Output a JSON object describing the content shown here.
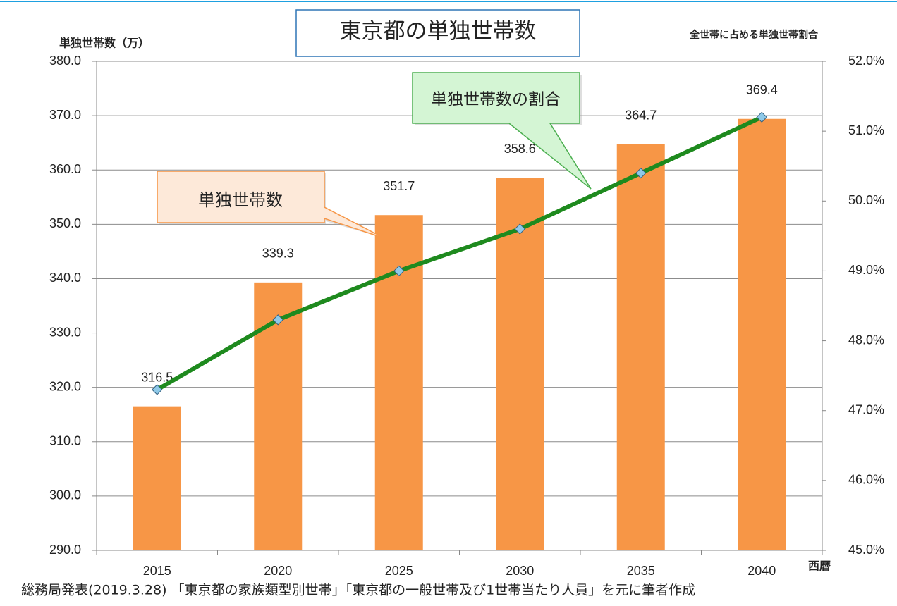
{
  "chart_data": {
    "type": "bar_line",
    "title": "東京都の単独世帯数",
    "y_label": "単独世帯数（万）",
    "y2_label": "全世帯に占める単独世帯割合",
    "x_label": "西暦",
    "source": "総務局発表(2019.3.28) 「東京都の家族類型別世帯」「東京都の一般世帯及び1世帯当たり人員」を元に筆者作成",
    "categories": [
      "2015",
      "2020",
      "2025",
      "2030",
      "2035",
      "2040"
    ],
    "series": [
      {
        "name": "単独世帯数",
        "type": "bar",
        "color": "#f79646",
        "values": [
          316.5,
          339.3,
          351.7,
          358.6,
          364.7,
          369.4
        ]
      },
      {
        "name": "単独世帯数の割合",
        "type": "line",
        "axis": "y2",
        "color": "#1e8a1e",
        "values": [
          47.3,
          48.3,
          49.0,
          49.6,
          50.4,
          51.2
        ]
      }
    ],
    "ylim": [
      290,
      380
    ],
    "yticks": [
      {
        "value": 290,
        "label": "290.0"
      },
      {
        "value": 300,
        "label": "300.0"
      },
      {
        "value": 310,
        "label": "310.0"
      },
      {
        "value": 320,
        "label": "320.0"
      },
      {
        "value": 330,
        "label": "330.0"
      },
      {
        "value": 340,
        "label": "340.0"
      },
      {
        "value": 350,
        "label": "350.0"
      },
      {
        "value": 360,
        "label": "360.0"
      },
      {
        "value": 370,
        "label": "370.0"
      },
      {
        "value": 380,
        "label": "380.0"
      }
    ],
    "y2lim": [
      45,
      52
    ],
    "y2ticks": [
      {
        "value": 45,
        "label": "45.0%"
      },
      {
        "value": 46,
        "label": "46.0%"
      },
      {
        "value": 47,
        "label": "47.0%"
      },
      {
        "value": 48,
        "label": "48.0%"
      },
      {
        "value": 49,
        "label": "49.0%"
      },
      {
        "value": 50,
        "label": "50.0%"
      },
      {
        "value": 51,
        "label": "51.0%"
      },
      {
        "value": 52,
        "label": "52.0%"
      }
    ],
    "grid": true
  }
}
